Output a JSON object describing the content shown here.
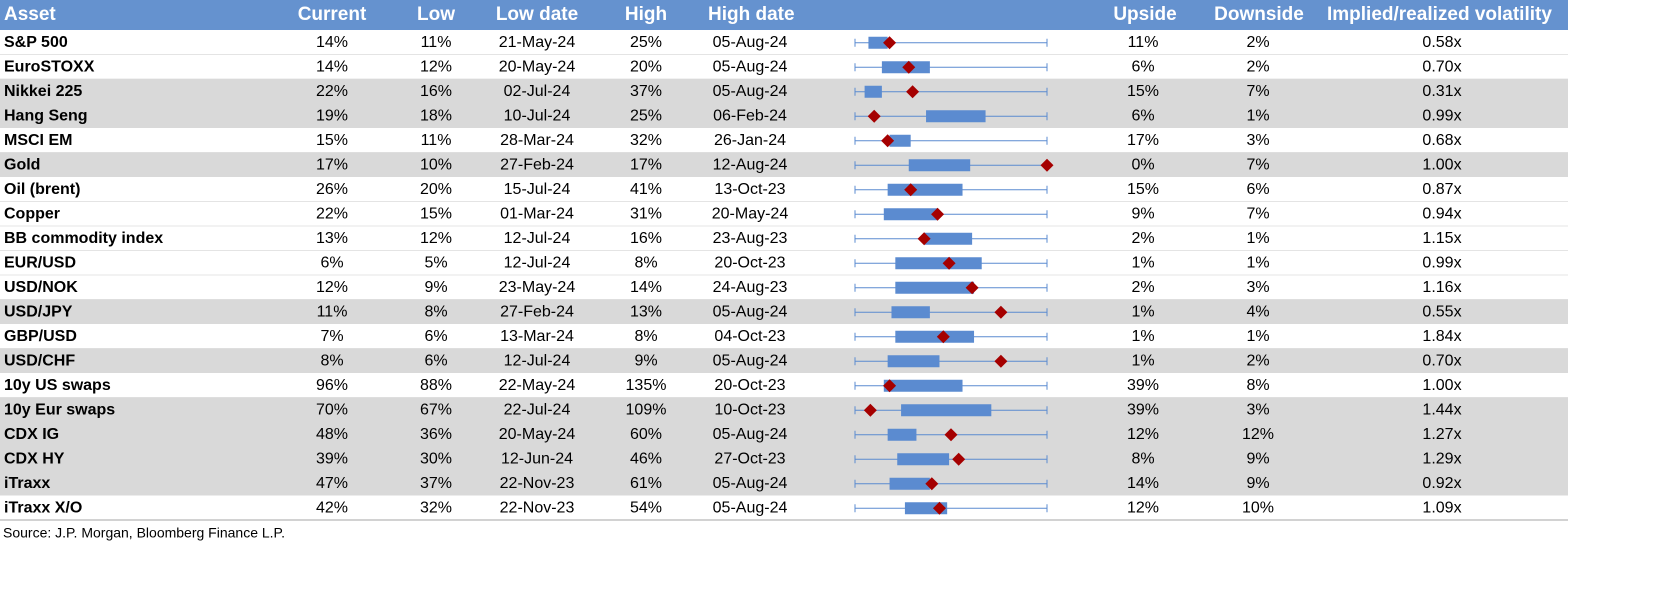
{
  "table": {
    "headers": [
      "Asset",
      "Current",
      "Low",
      "Low date",
      "High",
      "High date",
      "Upside",
      "Downside",
      "Implied/realized volatility"
    ],
    "rows": [
      {
        "cells": [
          "S&P 500",
          "14%",
          "11%",
          "21-May-24",
          "25%",
          "05-Aug-24",
          "11%",
          "2%",
          "0.58x"
        ],
        "box": [
          7,
          17
        ],
        "marker": 18,
        "shaded": false
      },
      {
        "cells": [
          "EuroSTOXX",
          "14%",
          "12%",
          "20-May-24",
          "20%",
          "05-Aug-24",
          "6%",
          "2%",
          "0.70x"
        ],
        "box": [
          14,
          39
        ],
        "marker": 28,
        "shaded": false
      },
      {
        "cells": [
          "Nikkei 225",
          "22%",
          "16%",
          "02-Jul-24",
          "37%",
          "05-Aug-24",
          "15%",
          "7%",
          "0.31x"
        ],
        "box": [
          5,
          14
        ],
        "marker": 30,
        "shaded": true
      },
      {
        "cells": [
          "Hang Seng",
          "19%",
          "18%",
          "10-Jul-24",
          "25%",
          "06-Feb-24",
          "6%",
          "1%",
          "0.99x"
        ],
        "box": [
          37,
          68
        ],
        "marker": 10,
        "shaded": true
      },
      {
        "cells": [
          "MSCI EM",
          "15%",
          "11%",
          "28-Mar-24",
          "32%",
          "26-Jan-24",
          "17%",
          "3%",
          "0.68x"
        ],
        "box": [
          18,
          29
        ],
        "marker": 17,
        "shaded": false
      },
      {
        "cells": [
          "Gold",
          "17%",
          "10%",
          "27-Feb-24",
          "17%",
          "12-Aug-24",
          "0%",
          "7%",
          "1.00x"
        ],
        "box": [
          28,
          60
        ],
        "marker": 100,
        "shaded": true
      },
      {
        "cells": [
          "Oil (brent)",
          "26%",
          "20%",
          "15-Jul-24",
          "41%",
          "13-Oct-23",
          "15%",
          "6%",
          "0.87x"
        ],
        "box": [
          17,
          56
        ],
        "marker": 29,
        "shaded": false
      },
      {
        "cells": [
          "Copper",
          "22%",
          "15%",
          "01-Mar-24",
          "31%",
          "20-May-24",
          "9%",
          "7%",
          "0.94x"
        ],
        "box": [
          15,
          43
        ],
        "marker": 43,
        "shaded": false
      },
      {
        "cells": [
          "BB commodity index",
          "13%",
          "12%",
          "12-Jul-24",
          "16%",
          "23-Aug-23",
          "2%",
          "1%",
          "1.15x"
        ],
        "box": [
          36,
          61
        ],
        "marker": 36,
        "shaded": false
      },
      {
        "cells": [
          "EUR/USD",
          "6%",
          "5%",
          "12-Jul-24",
          "8%",
          "20-Oct-23",
          "1%",
          "1%",
          "0.99x"
        ],
        "box": [
          21,
          66
        ],
        "marker": 49,
        "shaded": false
      },
      {
        "cells": [
          "USD/NOK",
          "12%",
          "9%",
          "23-May-24",
          "14%",
          "24-Aug-23",
          "2%",
          "3%",
          "1.16x"
        ],
        "box": [
          21,
          62
        ],
        "marker": 61,
        "shaded": false
      },
      {
        "cells": [
          "USD/JPY",
          "11%",
          "8%",
          "27-Feb-24",
          "13%",
          "05-Aug-24",
          "1%",
          "4%",
          "0.55x"
        ],
        "box": [
          19,
          39
        ],
        "marker": 76,
        "shaded": true
      },
      {
        "cells": [
          "GBP/USD",
          "7%",
          "6%",
          "13-Mar-24",
          "8%",
          "04-Oct-23",
          "1%",
          "1%",
          "1.84x"
        ],
        "box": [
          21,
          62
        ],
        "marker": 46,
        "shaded": false
      },
      {
        "cells": [
          "USD/CHF",
          "8%",
          "6%",
          "12-Jul-24",
          "9%",
          "05-Aug-24",
          "1%",
          "2%",
          "0.70x"
        ],
        "box": [
          17,
          44
        ],
        "marker": 76,
        "shaded": true
      },
      {
        "cells": [
          "10y US swaps",
          "96%",
          "88%",
          "22-May-24",
          "135%",
          "20-Oct-23",
          "39%",
          "8%",
          "1.00x"
        ],
        "box": [
          15,
          56
        ],
        "marker": 18,
        "shaded": false
      },
      {
        "cells": [
          "10y Eur swaps",
          "70%",
          "67%",
          "22-Jul-24",
          "109%",
          "10-Oct-23",
          "39%",
          "3%",
          "1.44x"
        ],
        "box": [
          24,
          71
        ],
        "marker": 8,
        "shaded": true
      },
      {
        "cells": [
          "CDX IG",
          "48%",
          "36%",
          "20-May-24",
          "60%",
          "05-Aug-24",
          "12%",
          "12%",
          "1.27x"
        ],
        "box": [
          17,
          32
        ],
        "marker": 50,
        "shaded": true
      },
      {
        "cells": [
          "CDX HY",
          "39%",
          "30%",
          "12-Jun-24",
          "46%",
          "27-Oct-23",
          "8%",
          "9%",
          "1.29x"
        ],
        "box": [
          22,
          49
        ],
        "marker": 54,
        "shaded": true
      },
      {
        "cells": [
          "iTraxx",
          "47%",
          "37%",
          "22-Nov-23",
          "61%",
          "05-Aug-24",
          "14%",
          "9%",
          "0.92x"
        ],
        "box": [
          18,
          39
        ],
        "marker": 40,
        "shaded": true
      },
      {
        "cells": [
          "iTraxx X/O",
          "42%",
          "32%",
          "22-Nov-23",
          "54%",
          "05-Aug-24",
          "12%",
          "10%",
          "1.09x"
        ],
        "box": [
          26,
          48
        ],
        "marker": 44,
        "shaded": false
      }
    ]
  },
  "source": "Source: J.P. Morgan, Bloomberg Finance L.P."
}
